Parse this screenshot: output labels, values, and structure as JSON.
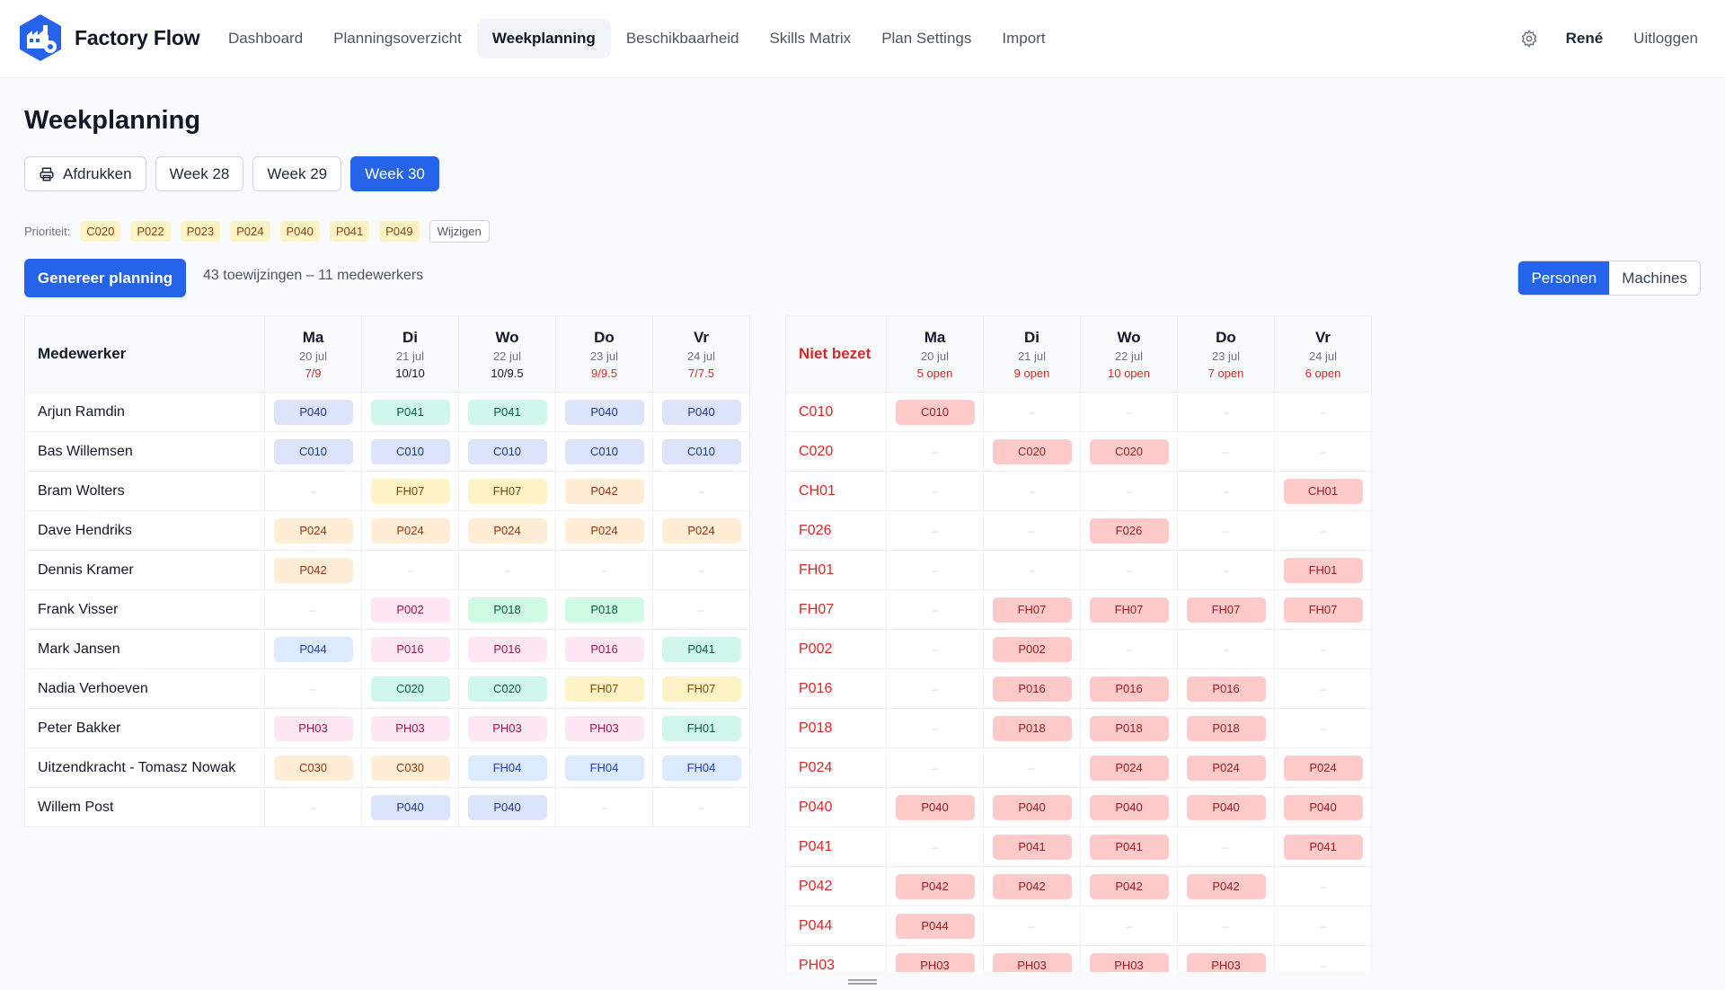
{
  "app": {
    "name": "Factory Flow",
    "logo_icon": "factory-gear-icon",
    "accent": "#2563eb"
  },
  "nav": {
    "items": [
      {
        "label": "Dashboard",
        "active": false
      },
      {
        "label": "Planningsoverzicht",
        "active": false
      },
      {
        "label": "Weekplanning",
        "active": true
      },
      {
        "label": "Beschikbaarheid",
        "active": false
      },
      {
        "label": "Skills Matrix",
        "active": false
      },
      {
        "label": "Plan Settings",
        "active": false
      },
      {
        "label": "Import",
        "active": false
      }
    ],
    "settings_icon": "gear-icon",
    "user": "René",
    "logout": "Uitloggen"
  },
  "page": {
    "title": "Weekplanning",
    "print_label": "Afdrukken",
    "weeks": [
      {
        "label": "Week 28",
        "active": false
      },
      {
        "label": "Week 29",
        "active": false
      },
      {
        "label": "Week 30",
        "active": true
      }
    ],
    "priority": {
      "label": "Prioriteit:",
      "chips": [
        "C020",
        "P022",
        "P023",
        "P024",
        "P040",
        "P041",
        "P049"
      ],
      "edit_label": "Wijzigen"
    },
    "generate_label": "Genereer planning",
    "summary": "43 toewijzingen – 11 medewerkers",
    "view_toggle": [
      {
        "label": "Personen",
        "active": true
      },
      {
        "label": "Machines",
        "active": false
      }
    ]
  },
  "employees_table": {
    "header": "Medewerker",
    "days": [
      {
        "name": "Ma",
        "date": "20 jul",
        "count": "7/9",
        "status": "under"
      },
      {
        "name": "Di",
        "date": "21 jul",
        "count": "10/10",
        "status": "ok"
      },
      {
        "name": "Wo",
        "date": "22 jul",
        "count": "10/9.5",
        "status": "ok"
      },
      {
        "name": "Do",
        "date": "23 jul",
        "count": "9/9.5",
        "status": "under"
      },
      {
        "name": "Vr",
        "date": "24 jul",
        "count": "7/7.5",
        "status": "under"
      }
    ],
    "rows": [
      {
        "name": "Arjun Ramdin",
        "cells": [
          [
            "P040",
            "blue"
          ],
          [
            "P041",
            "teal"
          ],
          [
            "P041",
            "teal"
          ],
          [
            "P040",
            "blue"
          ],
          [
            "P040",
            "blue"
          ]
        ]
      },
      {
        "name": "Bas Willemsen",
        "cells": [
          [
            "C010",
            "blue"
          ],
          [
            "C010",
            "blue"
          ],
          [
            "C010",
            "blue"
          ],
          [
            "C010",
            "blue"
          ],
          [
            "C010",
            "blue"
          ]
        ]
      },
      {
        "name": "Bram Wolters",
        "cells": [
          null,
          [
            "FH07",
            "yellow"
          ],
          [
            "FH07",
            "yellow"
          ],
          [
            "P042",
            "orange"
          ],
          null
        ]
      },
      {
        "name": "Dave Hendriks",
        "cells": [
          [
            "P024",
            "orange"
          ],
          [
            "P024",
            "orange"
          ],
          [
            "P024",
            "orange"
          ],
          [
            "P024",
            "orange"
          ],
          [
            "P024",
            "orange"
          ]
        ]
      },
      {
        "name": "Dennis Kramer",
        "cells": [
          [
            "P042",
            "orange"
          ],
          null,
          null,
          null,
          null
        ]
      },
      {
        "name": "Frank Visser",
        "cells": [
          null,
          [
            "P002",
            "pink"
          ],
          [
            "P018",
            "green"
          ],
          [
            "P018",
            "green"
          ],
          null
        ]
      },
      {
        "name": "Mark Jansen",
        "cells": [
          [
            "P044",
            "sky"
          ],
          [
            "P016",
            "pink"
          ],
          [
            "P016",
            "pink"
          ],
          [
            "P016",
            "pink"
          ],
          [
            "P041",
            "teal"
          ]
        ]
      },
      {
        "name": "Nadia Verhoeven",
        "cells": [
          null,
          [
            "C020",
            "teal"
          ],
          [
            "C020",
            "teal"
          ],
          [
            "FH07",
            "yellow"
          ],
          [
            "FH07",
            "yellow"
          ]
        ]
      },
      {
        "name": "Peter Bakker",
        "cells": [
          [
            "PH03",
            "pink"
          ],
          [
            "PH03",
            "pink"
          ],
          [
            "PH03",
            "pink"
          ],
          [
            "PH03",
            "pink"
          ],
          [
            "FH01",
            "teal"
          ]
        ]
      },
      {
        "name": "Uitzendkracht - Tomasz Nowak",
        "cells": [
          [
            "C030",
            "orange"
          ],
          [
            "C030",
            "orange"
          ],
          [
            "FH04",
            "sky"
          ],
          [
            "FH04",
            "sky"
          ],
          [
            "FH04",
            "sky"
          ]
        ]
      },
      {
        "name": "Willem Post",
        "cells": [
          null,
          [
            "P040",
            "blue"
          ],
          [
            "P040",
            "blue"
          ],
          null,
          null
        ]
      }
    ]
  },
  "open_table": {
    "header": "Niet bezet",
    "days": [
      {
        "name": "Ma",
        "date": "20 jul",
        "count": "5 open"
      },
      {
        "name": "Di",
        "date": "21 jul",
        "count": "9 open"
      },
      {
        "name": "Wo",
        "date": "22 jul",
        "count": "10 open"
      },
      {
        "name": "Do",
        "date": "23 jul",
        "count": "7 open"
      },
      {
        "name": "Vr",
        "date": "24 jul",
        "count": "6 open"
      }
    ],
    "rows": [
      {
        "name": "C010",
        "cells": [
          "C010",
          null,
          null,
          null,
          null
        ]
      },
      {
        "name": "C020",
        "cells": [
          null,
          "C020",
          "C020",
          null,
          null
        ]
      },
      {
        "name": "CH01",
        "cells": [
          null,
          null,
          null,
          null,
          "CH01"
        ]
      },
      {
        "name": "F026",
        "cells": [
          null,
          null,
          "F026",
          null,
          null
        ]
      },
      {
        "name": "FH01",
        "cells": [
          null,
          null,
          null,
          null,
          "FH01"
        ]
      },
      {
        "name": "FH07",
        "cells": [
          null,
          "FH07",
          "FH07",
          "FH07",
          "FH07"
        ]
      },
      {
        "name": "P002",
        "cells": [
          null,
          "P002",
          null,
          null,
          null
        ]
      },
      {
        "name": "P016",
        "cells": [
          null,
          "P016",
          "P016",
          "P016",
          null
        ]
      },
      {
        "name": "P018",
        "cells": [
          null,
          "P018",
          "P018",
          "P018",
          null
        ]
      },
      {
        "name": "P024",
        "cells": [
          null,
          null,
          "P024",
          "P024",
          "P024"
        ]
      },
      {
        "name": "P040",
        "cells": [
          "P040",
          "P040",
          "P040",
          "P040",
          "P040"
        ]
      },
      {
        "name": "P041",
        "cells": [
          null,
          "P041",
          "P041",
          null,
          "P041"
        ]
      },
      {
        "name": "P042",
        "cells": [
          "P042",
          "P042",
          "P042",
          "P042",
          null
        ]
      },
      {
        "name": "P044",
        "cells": [
          "P044",
          null,
          null,
          null,
          null
        ]
      },
      {
        "name": "PH03",
        "cells": [
          "PH03",
          "PH03",
          "PH03",
          "PH03",
          null
        ]
      }
    ],
    "empty_mark": "–"
  }
}
